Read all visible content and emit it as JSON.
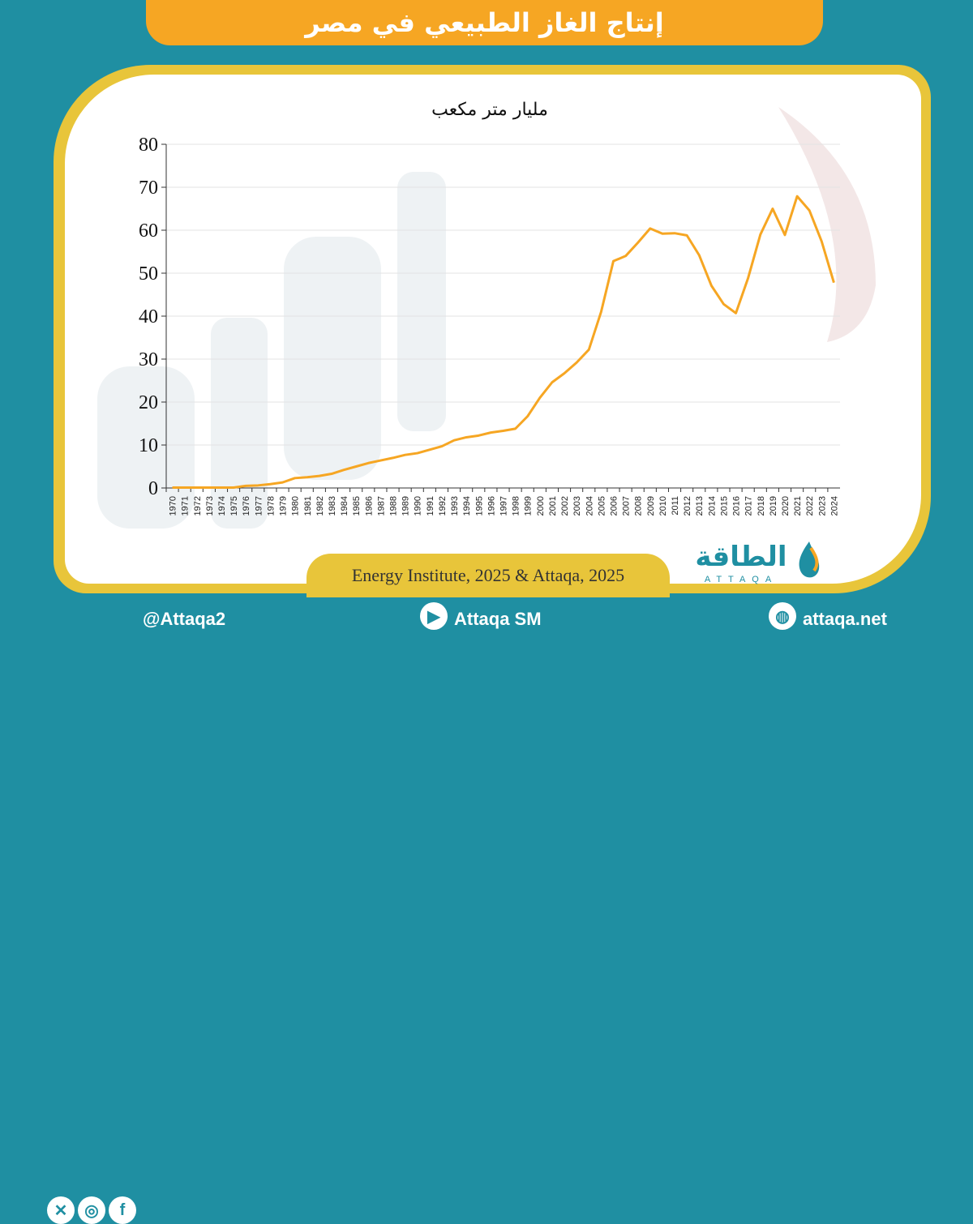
{
  "header": {
    "title": "إنتاج الغاز الطبيعي في مصر"
  },
  "chart_data": {
    "type": "line",
    "ylabel": "مليار متر مكعب",
    "ylim": [
      0,
      80
    ],
    "yticks": [
      0,
      10,
      20,
      30,
      40,
      50,
      60,
      70,
      80
    ],
    "grid": true,
    "x": [
      "1970",
      "1971",
      "1972",
      "1973",
      "1974",
      "1975",
      "1976",
      "1977",
      "1978",
      "1979",
      "1980",
      "1981",
      "1982",
      "1983",
      "1984",
      "1985",
      "1986",
      "1987",
      "1988",
      "1989",
      "1990",
      "1991",
      "1992",
      "1993",
      "1994",
      "1995",
      "1996",
      "1997",
      "1998",
      "1999",
      "2000",
      "2001",
      "2002",
      "2003",
      "2004",
      "2005",
      "2006",
      "2007",
      "2008",
      "2009",
      "2010",
      "2011",
      "2012",
      "2013",
      "2014",
      "2015",
      "2016",
      "2017",
      "2018",
      "2019",
      "2020",
      "2021",
      "2022",
      "2023",
      "2024"
    ],
    "series": [
      {
        "values": [
          0.1,
          0.1,
          0.1,
          0.1,
          0.1,
          0.1,
          0.5,
          0.6,
          0.9,
          1.3,
          2.3,
          2.5,
          2.8,
          3.3,
          4.2,
          5.0,
          5.8,
          6.4,
          7.0,
          7.7,
          8.1,
          8.9,
          9.7,
          11.1,
          11.8,
          12.2,
          12.9,
          13.3,
          13.8,
          16.7,
          21.0,
          24.6,
          26.7,
          29.2,
          32.2,
          41.0,
          52.8,
          54.0,
          57.1,
          60.4,
          59.2,
          59.3,
          58.8,
          54.2,
          47.1,
          42.8,
          40.7,
          48.9,
          59.0,
          65.0,
          58.9,
          67.9,
          64.6,
          57.4,
          47.8
        ]
      }
    ],
    "colors": {
      "line": "#f6a623",
      "grid": "#e3e3e3",
      "axis": "#333333"
    }
  },
  "source": {
    "text": "Energy Institute, 2025 & Attaqa, 2025"
  },
  "logo": {
    "brand": "الطاقة",
    "latin": "ATTAQA"
  },
  "footer": {
    "social_handle": "@Attaqa2",
    "youtube": "Attaqa SM",
    "website": "attaqa.net"
  }
}
